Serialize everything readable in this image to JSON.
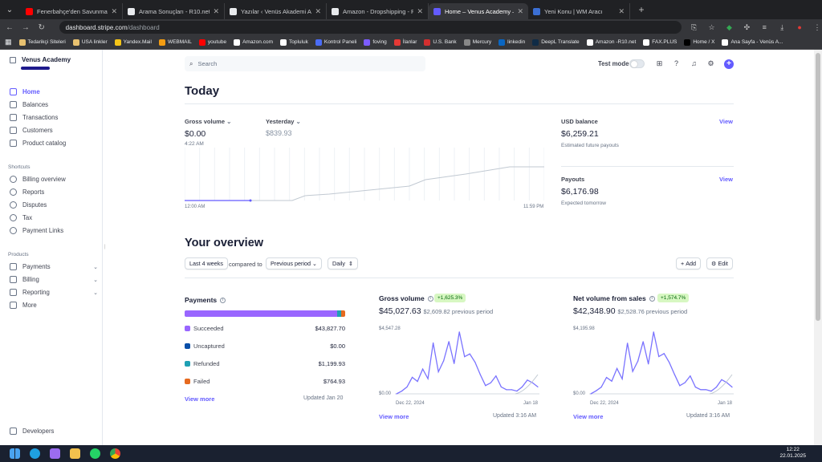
{
  "browser": {
    "tabs": [
      {
        "title": "Fenerbahçe'den Savunmaya Du",
        "color": "#ff0000"
      },
      {
        "title": "Arama Sonuçları - R10.net",
        "color": "#e8eaed"
      },
      {
        "title": "Yazılar ‹ Venüs Akademi Amaz",
        "color": "#e8eaed"
      },
      {
        "title": "Amazon - Dropshipping - Para",
        "color": "#e8eaed"
      },
      {
        "title": "Home – Venus Academy – Strip",
        "color": "#635bff"
      },
      {
        "title": "Yeni Konu | WM Aracı",
        "color": "#3b6fd4"
      }
    ],
    "url_host": "dashboard.stripe.com",
    "url_path": "/dashboard",
    "bookmarks": [
      {
        "label": "Tedarikçi Siteleri",
        "color": "#e8c170"
      },
      {
        "label": "USA linkler",
        "color": "#e8c170"
      },
      {
        "label": "Yandex.Mail",
        "color": "#f5c518"
      },
      {
        "label": "WEBMAIL",
        "color": "#f39c12"
      },
      {
        "label": "youtube",
        "color": "#ff0000"
      },
      {
        "label": "Amazon.com",
        "color": "#ffffff"
      },
      {
        "label": "Topluluk",
        "color": "#ffffff"
      },
      {
        "label": "Kontrol Paneli",
        "color": "#4a6cf7"
      },
      {
        "label": "foving",
        "color": "#7b5cff"
      },
      {
        "label": "İlanlar",
        "color": "#e53935"
      },
      {
        "label": "U.S. Bank",
        "color": "#d32f2f"
      },
      {
        "label": "Mercury",
        "color": "#888888"
      },
      {
        "label": "linkedin",
        "color": "#0a66c2"
      },
      {
        "label": "DeepL Translate",
        "color": "#0f2b46"
      },
      {
        "label": "Amazon -R10.net",
        "color": "#ffffff"
      },
      {
        "label": "FAX.PLUS",
        "color": "#ffffff"
      },
      {
        "label": "Home / X",
        "color": "#000000"
      },
      {
        "label": "Ana Sayfa - Venüs A...",
        "color": "#ffffff"
      }
    ]
  },
  "sidebar": {
    "account": "Venus Academy",
    "items": [
      {
        "label": "Home",
        "icon": "home-icon"
      },
      {
        "label": "Balances",
        "icon": "balances-icon"
      },
      {
        "label": "Transactions",
        "icon": "transactions-icon"
      },
      {
        "label": "Customers",
        "icon": "customers-icon"
      },
      {
        "label": "Product catalog",
        "icon": "catalog-icon"
      }
    ],
    "shortcuts_label": "Shortcuts",
    "shortcuts": [
      {
        "label": "Billing overview"
      },
      {
        "label": "Reports"
      },
      {
        "label": "Disputes"
      },
      {
        "label": "Tax"
      },
      {
        "label": "Payment Links"
      }
    ],
    "products_label": "Products",
    "products": [
      {
        "label": "Payments"
      },
      {
        "label": "Billing"
      },
      {
        "label": "Reporting"
      },
      {
        "label": "More"
      }
    ],
    "developers": "Developers"
  },
  "header": {
    "search_placeholder": "Search",
    "test_mode": "Test mode"
  },
  "today": {
    "title": "Today",
    "gross_label": "Gross volume",
    "gross_value": "$0.00",
    "gross_time": "4:22 AM",
    "yesterday_label": "Yesterday",
    "yesterday_value": "$839.93",
    "axis_start": "12:00 AM",
    "axis_end": "11:59 PM",
    "usd_label": "USD balance",
    "usd_value": "$6,259.21",
    "usd_sub": "Estimated future payouts",
    "payouts_label": "Payouts",
    "payouts_value": "$6,176.98",
    "payouts_sub": "Expected tomorrow",
    "view": "View"
  },
  "overview": {
    "title": "Your overview",
    "range": "Last 4 weeks",
    "compared": "compared to",
    "period": "Previous period",
    "interval": "Daily",
    "add": "Add",
    "edit": "Edit"
  },
  "payments": {
    "title": "Payments",
    "rows": [
      {
        "label": "Succeeded",
        "amount": "$43,827.70",
        "color": "#9966ff"
      },
      {
        "label": "Uncaptured",
        "amount": "$0.00",
        "color": "#0a4fa8"
      },
      {
        "label": "Refunded",
        "amount": "$1,199.93",
        "color": "#1ea0b4"
      },
      {
        "label": "Failed",
        "amount": "$764.93",
        "color": "#e66a1f"
      }
    ],
    "view_more": "View more",
    "updated": "Updated Jan 20"
  },
  "gross_card": {
    "title": "Gross volume",
    "badge": "+1,625.3%",
    "value": "$45,027.63",
    "prev": "$2,609.82 previous period",
    "ymax": "$4,547.28",
    "ymin": "$0.00",
    "xstart": "Dec 22, 2024",
    "xend": "Jan 18",
    "view_more": "View more",
    "updated": "Updated 3:16 AM"
  },
  "net_card": {
    "title": "Net volume from sales",
    "badge": "+1,574.7%",
    "value": "$42,348.90",
    "prev": "$2,528.76 previous period",
    "ymax": "$4,195.98",
    "ymin": "$0.00",
    "xstart": "Dec 22, 2024",
    "xend": "Jan 18",
    "view_more": "View more",
    "updated": "Updated 3:16 AM"
  },
  "taskbar": {
    "time": "12:22",
    "date": "22.01.2025"
  },
  "chart_data": [
    {
      "type": "line",
      "title": "Gross volume",
      "ylim": [
        0,
        4547.28
      ],
      "series": [
        {
          "values": [
            0,
            200,
            500,
            1200,
            900,
            1800,
            1100,
            3700,
            1600,
            2400,
            3800,
            2200,
            4500,
            2700,
            2900,
            2300,
            1400,
            600,
            800,
            1300,
            500,
            300,
            300,
            200,
            500,
            1000,
            800,
            500
          ]
        }
      ]
    },
    {
      "type": "line",
      "title": "Net volume from sales",
      "ylim": [
        0,
        4195.98
      ],
      "series": [
        {
          "values": [
            0,
            200,
            450,
            1100,
            850,
            1700,
            1000,
            3400,
            1500,
            2200,
            3500,
            2000,
            4150,
            2500,
            2700,
            2100,
            1300,
            550,
            750,
            1200,
            450,
            280,
            280,
            180,
            450,
            950,
            750,
            450
          ]
        }
      ]
    }
  ]
}
